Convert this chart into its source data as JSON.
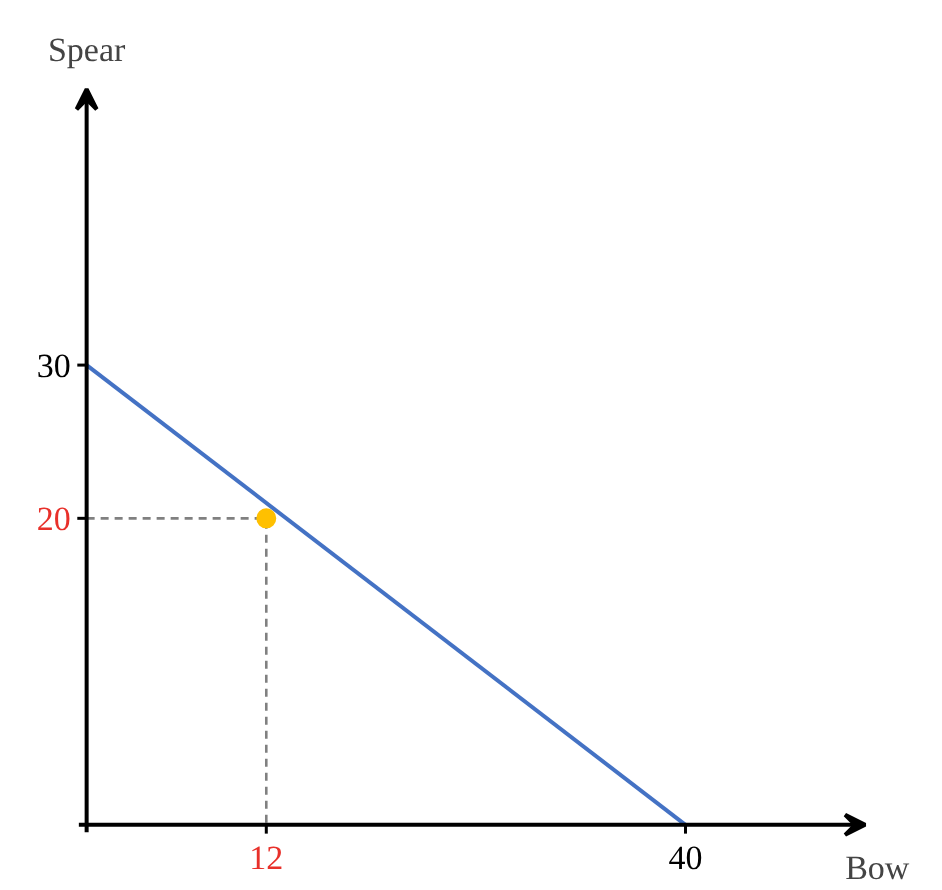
{
  "chart_data": {
    "type": "line",
    "xlabel": "Bow",
    "ylabel": "Spear",
    "series": [
      {
        "x": [
          0,
          40
        ],
        "values": [
          30,
          0
        ],
        "color": "#4472c4"
      },
      {
        "type": "line",
        "x": [
          0,
          12,
          12
        ],
        "values": [
          20,
          20,
          0
        ],
        "color": "#808080",
        "line_style": "dashed"
      },
      {
        "type": "scatter",
        "x": [
          12
        ],
        "values": [
          20
        ],
        "color": "#ffc000",
        "marker": "circle"
      }
    ],
    "xlim": [
      0,
      52
    ],
    "ylim": [
      0,
      48
    ],
    "xticks": [
      12,
      40
    ],
    "yticks": [
      20,
      30
    ],
    "grid": false
  }
}
